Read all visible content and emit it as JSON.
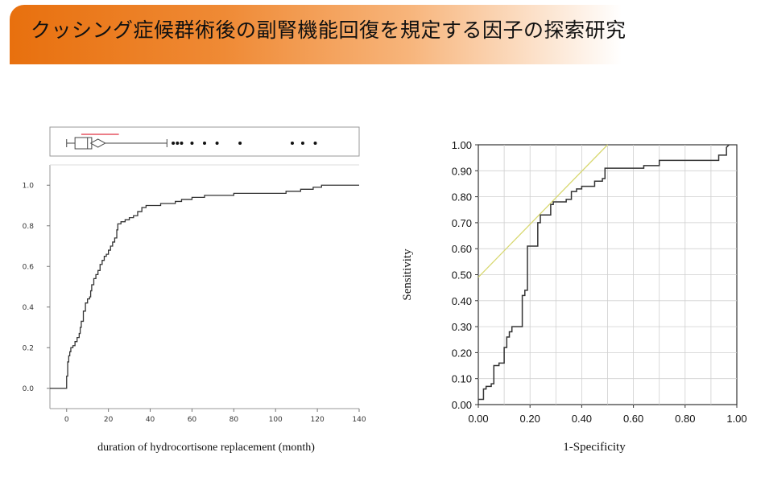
{
  "header": {
    "title": "クッシング症候群術後の副腎機能回復を規定する因子の探索研究"
  },
  "colors": {
    "accent": "#e8700e",
    "curve": "#333333",
    "refline": "#d8d870",
    "boxbracket": "#e03040"
  },
  "chart_data": [
    {
      "type": "line",
      "subtype": "cumulative-distribution-with-boxplot",
      "xlabel": "duration of  hydrocortisone replacement  (month)",
      "ylabel": "",
      "xlim": [
        -8,
        140
      ],
      "ylim": [
        -0.1,
        1.1
      ],
      "xticks": [
        "0",
        "20",
        "40",
        "60",
        "80",
        "100",
        "120",
        "140"
      ],
      "yticks": [
        "0.0",
        "0.2",
        "0.4",
        "0.6",
        "0.8",
        "1.0"
      ],
      "grid": false,
      "series": [
        {
          "x": [
            -8,
            0,
            0,
            0.5,
            1,
            1.5,
            2,
            3,
            4,
            5,
            6,
            6.5,
            7,
            8,
            9,
            10,
            11,
            11.5,
            12,
            13,
            14,
            15,
            16,
            17,
            18,
            19,
            20,
            21,
            22,
            23,
            24,
            24.5,
            26,
            28,
            30,
            32,
            34,
            36,
            38,
            40,
            45,
            50,
            52,
            55,
            60,
            66,
            70,
            80,
            90,
            100,
            105,
            108,
            112,
            118,
            122,
            140
          ],
          "y": [
            0,
            0,
            0.06,
            0.13,
            0.16,
            0.18,
            0.2,
            0.21,
            0.23,
            0.25,
            0.27,
            0.3,
            0.33,
            0.38,
            0.42,
            0.44,
            0.45,
            0.48,
            0.51,
            0.54,
            0.56,
            0.58,
            0.61,
            0.63,
            0.65,
            0.66,
            0.68,
            0.7,
            0.72,
            0.74,
            0.78,
            0.81,
            0.82,
            0.83,
            0.84,
            0.85,
            0.87,
            0.89,
            0.9,
            0.9,
            0.91,
            0.91,
            0.92,
            0.93,
            0.94,
            0.95,
            0.95,
            0.96,
            0.96,
            0.96,
            0.97,
            0.97,
            0.98,
            0.99,
            1.0,
            1.0
          ]
        }
      ],
      "boxplot": {
        "whisker_low": 0,
        "q1": 4,
        "median": 10,
        "q3": 12,
        "whisker_high": 48,
        "mean": 15,
        "ci": [
          7,
          25
        ],
        "outliers": [
          51,
          53,
          55,
          60,
          66,
          72,
          83,
          108,
          113,
          119
        ]
      }
    },
    {
      "type": "line",
      "subtype": "roc-curve",
      "xlabel": "1-Specificity",
      "ylabel": "Sensitivity",
      "xlim": [
        0,
        1
      ],
      "ylim": [
        0,
        1
      ],
      "xticks": [
        "0.00",
        "0.20",
        "0.40",
        "0.60",
        "0.80",
        "1.00"
      ],
      "yticks": [
        "0.00",
        "0.10",
        "0.20",
        "0.30",
        "0.40",
        "0.50",
        "0.60",
        "0.70",
        "0.80",
        "0.90",
        "1.00"
      ],
      "grid": true,
      "series": [
        {
          "x": [
            0.0,
            0.02,
            0.02,
            0.03,
            0.03,
            0.05,
            0.05,
            0.06,
            0.06,
            0.08,
            0.08,
            0.1,
            0.1,
            0.11,
            0.11,
            0.12,
            0.12,
            0.13,
            0.13,
            0.17,
            0.17,
            0.18,
            0.18,
            0.19,
            0.19,
            0.23,
            0.23,
            0.24,
            0.24,
            0.28,
            0.28,
            0.29,
            0.29,
            0.34,
            0.34,
            0.36,
            0.36,
            0.38,
            0.38,
            0.4,
            0.4,
            0.45,
            0.45,
            0.48,
            0.48,
            0.49,
            0.49,
            0.64,
            0.64,
            0.7,
            0.7,
            0.93,
            0.93,
            0.96,
            0.96,
            0.97
          ],
          "y": [
            0.02,
            0.02,
            0.06,
            0.06,
            0.07,
            0.07,
            0.08,
            0.08,
            0.15,
            0.15,
            0.16,
            0.16,
            0.22,
            0.22,
            0.26,
            0.26,
            0.28,
            0.28,
            0.3,
            0.3,
            0.42,
            0.42,
            0.44,
            0.44,
            0.61,
            0.61,
            0.7,
            0.7,
            0.73,
            0.73,
            0.77,
            0.77,
            0.78,
            0.78,
            0.79,
            0.79,
            0.82,
            0.82,
            0.83,
            0.83,
            0.84,
            0.84,
            0.86,
            0.86,
            0.87,
            0.87,
            0.91,
            0.91,
            0.92,
            0.92,
            0.94,
            0.94,
            0.96,
            0.96,
            0.99,
            1.0
          ]
        }
      ],
      "reference_line": {
        "x": [
          0,
          0.5
        ],
        "y": [
          0.49,
          1.0
        ]
      }
    }
  ]
}
